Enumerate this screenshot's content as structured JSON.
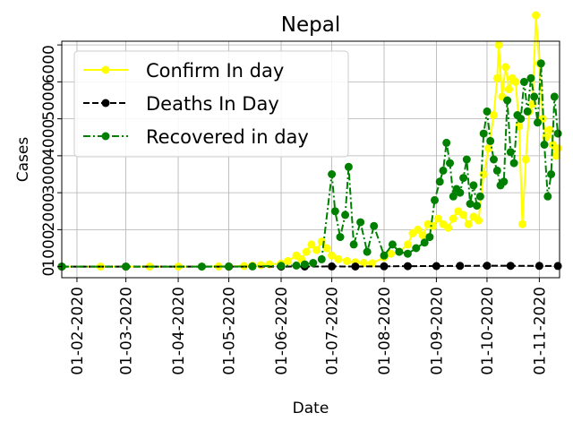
{
  "chart_data": {
    "type": "line",
    "title": "Nepal",
    "xlabel": "Date",
    "ylabel": "Cases",
    "grid": true,
    "legend_placement": "top-left",
    "x_range": [
      "2020-01-23",
      "2020-11-13"
    ],
    "y_range": [
      -300,
      6100
    ],
    "x_ticks": [
      {
        "date": "2020-02-01",
        "label": "01-02-2020"
      },
      {
        "date": "2020-03-01",
        "label": "01-03-2020"
      },
      {
        "date": "2020-04-01",
        "label": "01-04-2020"
      },
      {
        "date": "2020-05-01",
        "label": "01-05-2020"
      },
      {
        "date": "2020-06-01",
        "label": "01-06-2020"
      },
      {
        "date": "2020-07-01",
        "label": "01-07-2020"
      },
      {
        "date": "2020-08-01",
        "label": "01-08-2020"
      },
      {
        "date": "2020-09-01",
        "label": "01-09-2020"
      },
      {
        "date": "2020-10-01",
        "label": "01-10-2020"
      },
      {
        "date": "2020-11-01",
        "label": "01-11-2020"
      }
    ],
    "y_ticks": [
      {
        "value": 0,
        "label": "0"
      },
      {
        "value": 1000,
        "label": "1000"
      },
      {
        "value": 2000,
        "label": "2000"
      },
      {
        "value": 3000,
        "label": "3000"
      },
      {
        "value": 4000,
        "label": "4000"
      },
      {
        "value": 5000,
        "label": "5000"
      },
      {
        "value": 6000,
        "label": "6000"
      }
    ],
    "series": [
      {
        "name": "Confirm In day",
        "color": "#ffff00",
        "line_style": "solid",
        "marker": "circle",
        "points": [
          [
            "2020-01-23",
            0
          ],
          [
            "2020-02-15",
            0
          ],
          [
            "2020-03-15",
            0
          ],
          [
            "2020-04-01",
            1
          ],
          [
            "2020-04-15",
            2
          ],
          [
            "2020-04-25",
            5
          ],
          [
            "2020-05-01",
            5
          ],
          [
            "2020-05-10",
            15
          ],
          [
            "2020-05-15",
            30
          ],
          [
            "2020-05-20",
            40
          ],
          [
            "2020-05-25",
            60
          ],
          [
            "2020-06-01",
            80
          ],
          [
            "2020-06-05",
            150
          ],
          [
            "2020-06-10",
            300
          ],
          [
            "2020-06-13",
            200
          ],
          [
            "2020-06-16",
            400
          ],
          [
            "2020-06-19",
            600
          ],
          [
            "2020-06-22",
            450
          ],
          [
            "2020-06-25",
            680
          ],
          [
            "2020-06-28",
            500
          ],
          [
            "2020-07-01",
            300
          ],
          [
            "2020-07-05",
            200
          ],
          [
            "2020-07-10",
            150
          ],
          [
            "2020-07-15",
            120
          ],
          [
            "2020-07-20",
            100
          ],
          [
            "2020-07-25",
            90
          ],
          [
            "2020-08-01",
            250
          ],
          [
            "2020-08-05",
            350
          ],
          [
            "2020-08-10",
            400
          ],
          [
            "2020-08-15",
            600
          ],
          [
            "2020-08-18",
            900
          ],
          [
            "2020-08-21",
            1000
          ],
          [
            "2020-08-24",
            850
          ],
          [
            "2020-08-27",
            1150
          ],
          [
            "2020-08-30",
            1100
          ],
          [
            "2020-09-02",
            1300
          ],
          [
            "2020-09-05",
            1150
          ],
          [
            "2020-09-08",
            1050
          ],
          [
            "2020-09-11",
            1300
          ],
          [
            "2020-09-14",
            1500
          ],
          [
            "2020-09-17",
            1400
          ],
          [
            "2020-09-20",
            1150
          ],
          [
            "2020-09-23",
            1350
          ],
          [
            "2020-09-26",
            1250
          ],
          [
            "2020-09-29",
            2500
          ],
          [
            "2020-10-02",
            3200
          ],
          [
            "2020-10-05",
            4100
          ],
          [
            "2020-10-07",
            5100
          ],
          [
            "2020-10-08",
            6000
          ],
          [
            "2020-10-10",
            4600
          ],
          [
            "2020-10-12",
            5400
          ],
          [
            "2020-10-14",
            4800
          ],
          [
            "2020-10-16",
            5100
          ],
          [
            "2020-10-18",
            5000
          ],
          [
            "2020-10-20",
            3800
          ],
          [
            "2020-10-22",
            1150
          ],
          [
            "2020-10-24",
            2900
          ],
          [
            "2020-10-26",
            4200
          ],
          [
            "2020-10-28",
            4400
          ],
          [
            "2020-10-30",
            6800
          ],
          [
            "2020-11-01",
            5500
          ],
          [
            "2020-11-03",
            4000
          ],
          [
            "2020-11-05",
            3500
          ],
          [
            "2020-11-07",
            3700
          ],
          [
            "2020-11-09",
            3300
          ],
          [
            "2020-11-11",
            3000
          ],
          [
            "2020-11-12",
            3200
          ]
        ]
      },
      {
        "name": "Deaths In Day",
        "color": "#000000",
        "line_style": "dashed",
        "marker": "circle",
        "points": [
          [
            "2020-01-23",
            0
          ],
          [
            "2020-03-01",
            0
          ],
          [
            "2020-05-01",
            0
          ],
          [
            "2020-06-01",
            1
          ],
          [
            "2020-06-15",
            3
          ],
          [
            "2020-07-01",
            5
          ],
          [
            "2020-07-15",
            3
          ],
          [
            "2020-08-01",
            8
          ],
          [
            "2020-08-15",
            12
          ],
          [
            "2020-09-01",
            15
          ],
          [
            "2020-09-15",
            20
          ],
          [
            "2020-10-01",
            25
          ],
          [
            "2020-10-15",
            22
          ],
          [
            "2020-11-01",
            20
          ],
          [
            "2020-11-12",
            18
          ]
        ]
      },
      {
        "name": "Recovered in day",
        "color": "#008000",
        "line_style": "dashdot",
        "marker": "circle",
        "points": [
          [
            "2020-01-23",
            0
          ],
          [
            "2020-03-01",
            0
          ],
          [
            "2020-04-15",
            1
          ],
          [
            "2020-05-01",
            2
          ],
          [
            "2020-05-15",
            5
          ],
          [
            "2020-06-01",
            20
          ],
          [
            "2020-06-10",
            30
          ],
          [
            "2020-06-15",
            60
          ],
          [
            "2020-06-20",
            100
          ],
          [
            "2020-06-25",
            200
          ],
          [
            "2020-07-01",
            2500
          ],
          [
            "2020-07-03",
            1500
          ],
          [
            "2020-07-06",
            800
          ],
          [
            "2020-07-09",
            1400
          ],
          [
            "2020-07-11",
            2700
          ],
          [
            "2020-07-14",
            600
          ],
          [
            "2020-07-18",
            1200
          ],
          [
            "2020-07-22",
            400
          ],
          [
            "2020-07-26",
            1100
          ],
          [
            "2020-08-01",
            300
          ],
          [
            "2020-08-06",
            600
          ],
          [
            "2020-08-10",
            400
          ],
          [
            "2020-08-15",
            350
          ],
          [
            "2020-08-20",
            500
          ],
          [
            "2020-08-25",
            650
          ],
          [
            "2020-08-28",
            800
          ],
          [
            "2020-08-31",
            1800
          ],
          [
            "2020-09-03",
            2300
          ],
          [
            "2020-09-05",
            2600
          ],
          [
            "2020-09-07",
            3350
          ],
          [
            "2020-09-09",
            2800
          ],
          [
            "2020-09-11",
            1900
          ],
          [
            "2020-09-13",
            2100
          ],
          [
            "2020-09-15",
            2000
          ],
          [
            "2020-09-17",
            2400
          ],
          [
            "2020-09-19",
            2900
          ],
          [
            "2020-09-21",
            1700
          ],
          [
            "2020-09-23",
            2200
          ],
          [
            "2020-09-25",
            1650
          ],
          [
            "2020-09-27",
            1900
          ],
          [
            "2020-09-29",
            3600
          ],
          [
            "2020-10-01",
            4200
          ],
          [
            "2020-10-03",
            3400
          ],
          [
            "2020-10-05",
            2900
          ],
          [
            "2020-10-07",
            2600
          ],
          [
            "2020-10-09",
            2200
          ],
          [
            "2020-10-11",
            2300
          ],
          [
            "2020-10-13",
            4500
          ],
          [
            "2020-10-15",
            3100
          ],
          [
            "2020-10-17",
            2800
          ],
          [
            "2020-10-19",
            4100
          ],
          [
            "2020-10-21",
            4000
          ],
          [
            "2020-10-23",
            5000
          ],
          [
            "2020-10-25",
            4200
          ],
          [
            "2020-10-27",
            5100
          ],
          [
            "2020-10-29",
            4600
          ],
          [
            "2020-10-31",
            3900
          ],
          [
            "2020-11-02",
            5500
          ],
          [
            "2020-11-04",
            3300
          ],
          [
            "2020-11-06",
            1900
          ],
          [
            "2020-11-08",
            2500
          ],
          [
            "2020-11-10",
            4600
          ],
          [
            "2020-11-12",
            3600
          ]
        ]
      }
    ]
  }
}
